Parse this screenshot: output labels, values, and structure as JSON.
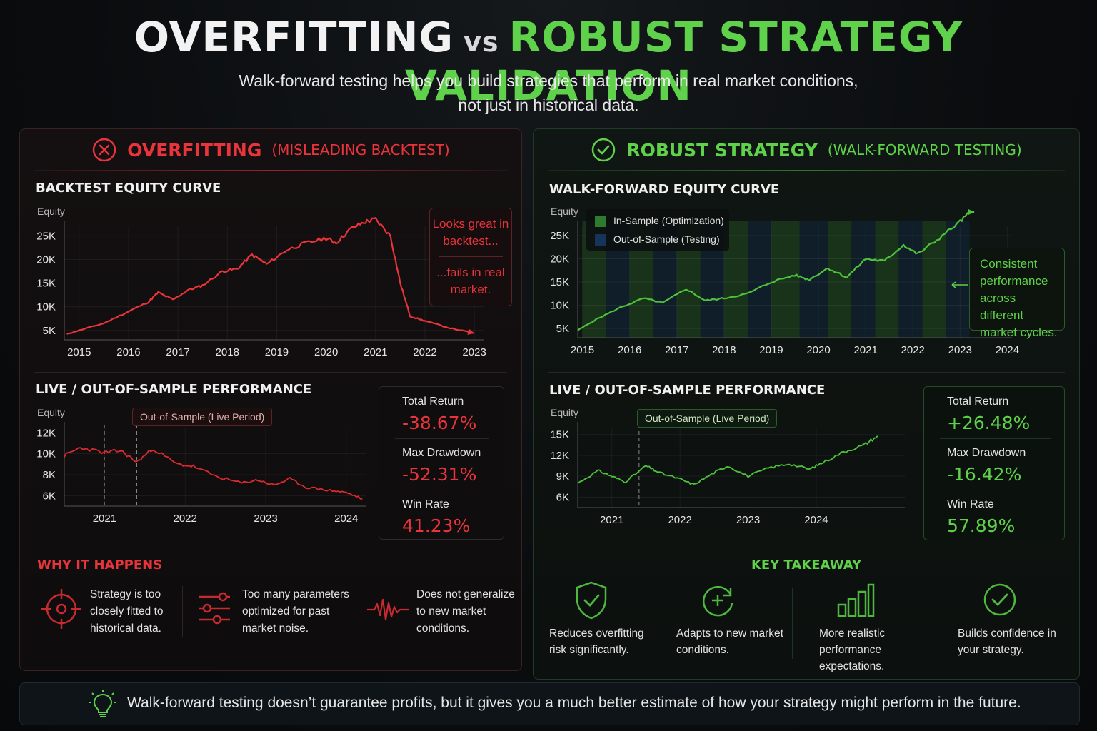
{
  "header": {
    "title_part1": "OVERFITTING",
    "title_vs": "vs",
    "title_part2": "ROBUST STRATEGY VALIDATION",
    "subtitle_line1": "Walk-forward testing helps you build strategies that perform in real market conditions,",
    "subtitle_line2": "not just in historical data."
  },
  "colors": {
    "red": "#e8343a",
    "green": "#5fd14a",
    "in_sample": "#1f4d22",
    "out_sample": "#0f2238"
  },
  "left": {
    "icon": "x-circle-icon",
    "title": "OVERFITTING",
    "title_sub": "(MISLEADING BACKTEST)",
    "backtest_title": "BACKTEST EQUITY CURVE",
    "callout_top": "Looks great in backtest...",
    "callout_bottom": "...fails in real market.",
    "live_title": "LIVE / OUT-OF-SAMPLE PERFORMANCE",
    "live_tag": "Out-of-Sample (Live Period)",
    "stats": [
      {
        "label": "Total Return",
        "value": "-38.67%"
      },
      {
        "label": "Max Drawdown",
        "value": "-52.31%"
      },
      {
        "label": "Win Rate",
        "value": "41.23%"
      }
    ],
    "why_title": "WHY IT HAPPENS",
    "why_items": [
      {
        "icon": "target-icon",
        "text": "Strategy is too closely fitted to historical data."
      },
      {
        "icon": "sliders-icon",
        "text": "Too many parameters optimized for past market noise."
      },
      {
        "icon": "waveform-icon",
        "text": "Does not generalize to new market conditions."
      }
    ]
  },
  "right": {
    "icon": "check-circle-icon",
    "title": "ROBUST STRATEGY",
    "title_sub": "(WALK-FORWARD TESTING)",
    "wf_title": "WALK-FORWARD EQUITY CURVE",
    "legend_in": "In-Sample (Optimization)",
    "legend_out": "Out-of-Sample (Testing)",
    "callout": "Consistent performance across different market cycles.",
    "live_title": "LIVE / OUT-OF-SAMPLE PERFORMANCE",
    "live_tag": "Out-of-Sample (Live Period)",
    "stats": [
      {
        "label": "Total Return",
        "value": "+26.48%"
      },
      {
        "label": "Max Drawdown",
        "value": "-16.42%"
      },
      {
        "label": "Win Rate",
        "value": "57.89%"
      }
    ],
    "take_title": "KEY TAKEAWAY",
    "take_items": [
      {
        "icon": "shield-check-icon",
        "text": "Reduces overfitting risk significantly."
      },
      {
        "icon": "refresh-plus-icon",
        "text": "Adapts to new market conditions."
      },
      {
        "icon": "bar-chart-icon",
        "text": "More realistic performance expectations."
      },
      {
        "icon": "check-circle-icon",
        "text": "Builds confidence in your strategy."
      }
    ]
  },
  "footer": {
    "icon": "lightbulb-icon",
    "text": "Walk-forward testing doesn’t guarantee profits, but it gives you a much better estimate of how your strategy might perform in the future."
  },
  "chart_data": [
    {
      "id": "backtest",
      "type": "line",
      "ylabel": "Equity",
      "x_ticks": [
        "2015",
        "2016",
        "2017",
        "2018",
        "2019",
        "2020",
        "2021",
        "2022",
        "2023"
      ],
      "y_ticks": [
        5000,
        10000,
        15000,
        20000,
        25000
      ],
      "y_tick_labels": [
        "5K",
        "10K",
        "15K",
        "20K",
        "25K"
      ],
      "xlim": [
        2014.7,
        2023.2
      ],
      "ylim": [
        3000,
        27000
      ],
      "series": [
        {
          "points": [
            [
              2014.75,
              4200
            ],
            [
              2015.0,
              5000
            ],
            [
              2015.5,
              6500
            ],
            [
              2016.0,
              9000
            ],
            [
              2016.4,
              11000
            ],
            [
              2016.6,
              13000
            ],
            [
              2016.9,
              11500
            ],
            [
              2017.2,
              13500
            ],
            [
              2017.5,
              14500
            ],
            [
              2017.9,
              17500
            ],
            [
              2018.2,
              18000
            ],
            [
              2018.5,
              21000
            ],
            [
              2018.8,
              19000
            ],
            [
              2019.2,
              22000
            ],
            [
              2019.6,
              23500
            ],
            [
              2020.0,
              24500
            ],
            [
              2020.2,
              23500
            ],
            [
              2020.5,
              26500
            ],
            [
              2020.8,
              28000
            ],
            [
              2021.0,
              28500
            ],
            [
              2021.3,
              25000
            ],
            [
              2021.5,
              15000
            ],
            [
              2021.7,
              8000
            ],
            [
              2022.0,
              7000
            ],
            [
              2022.5,
              5500
            ],
            [
              2023.0,
              4400
            ]
          ]
        }
      ]
    },
    {
      "id": "backtest_live",
      "type": "line",
      "ylabel": "Equity",
      "x_ticks": [
        "2021",
        "2022",
        "2023",
        "2024"
      ],
      "y_ticks": [
        6000,
        8000,
        10000,
        12000
      ],
      "y_tick_labels": [
        "6K",
        "8K",
        "10K",
        "12K"
      ],
      "xlim": [
        2020.5,
        2024.25
      ],
      "ylim": [
        5000,
        12500
      ],
      "live_start": 2021.4,
      "series": [
        {
          "points": [
            [
              2020.5,
              9800
            ],
            [
              2020.7,
              10600
            ],
            [
              2021.0,
              10100
            ],
            [
              2021.2,
              10300
            ],
            [
              2021.4,
              9200
            ],
            [
              2021.6,
              10500
            ],
            [
              2021.9,
              9000
            ],
            [
              2022.1,
              8800
            ],
            [
              2022.4,
              7800
            ],
            [
              2022.7,
              7200
            ],
            [
              2022.9,
              7500
            ],
            [
              2023.1,
              7000
            ],
            [
              2023.3,
              7600
            ],
            [
              2023.5,
              6800
            ],
            [
              2023.8,
              6500
            ],
            [
              2024.0,
              6300
            ],
            [
              2024.2,
              5700
            ]
          ]
        }
      ]
    },
    {
      "id": "walkforward",
      "type": "line",
      "ylabel": "Equity",
      "x_ticks": [
        "2015",
        "2016",
        "2017",
        "2018",
        "2019",
        "2020",
        "2021",
        "2022",
        "2023",
        "2024"
      ],
      "y_ticks": [
        5000,
        10000,
        15000,
        20000,
        25000
      ],
      "y_tick_labels": [
        "5K",
        "10K",
        "15K",
        "20K",
        "25K"
      ],
      "xlim": [
        2014.9,
        2024.1
      ],
      "ylim": [
        3000,
        27000
      ],
      "series": [
        {
          "points": [
            [
              2014.9,
              4600
            ],
            [
              2015.3,
              7000
            ],
            [
              2015.8,
              9500
            ],
            [
              2016.3,
              11500
            ],
            [
              2016.7,
              10500
            ],
            [
              2017.2,
              13500
            ],
            [
              2017.6,
              11000
            ],
            [
              2018.0,
              11500
            ],
            [
              2018.5,
              12500
            ],
            [
              2019.0,
              15000
            ],
            [
              2019.5,
              16500
            ],
            [
              2019.8,
              15500
            ],
            [
              2020.2,
              18000
            ],
            [
              2020.6,
              16000
            ],
            [
              2021.0,
              20000
            ],
            [
              2021.4,
              19500
            ],
            [
              2021.8,
              23000
            ],
            [
              2022.1,
              21000
            ],
            [
              2022.5,
              24000
            ],
            [
              2023.0,
              28000
            ],
            [
              2023.3,
              31000
            ]
          ]
        }
      ]
    },
    {
      "id": "walkforward_live",
      "type": "line",
      "ylabel": "Equity",
      "x_ticks": [
        "2021",
        "2022",
        "2023",
        "2024"
      ],
      "y_ticks": [
        6000,
        9000,
        12000,
        15000
      ],
      "y_tick_labels": [
        "6K",
        "9K",
        "12K",
        "15K"
      ],
      "xlim": [
        2020.5,
        2025.3
      ],
      "ylim": [
        4500,
        16000
      ],
      "live_start": 2021.4,
      "series": [
        {
          "points": [
            [
              2020.5,
              8000
            ],
            [
              2020.8,
              9800
            ],
            [
              2021.0,
              9000
            ],
            [
              2021.2,
              8200
            ],
            [
              2021.5,
              10500
            ],
            [
              2021.7,
              9500
            ],
            [
              2022.0,
              8600
            ],
            [
              2022.2,
              7800
            ],
            [
              2022.5,
              9500
            ],
            [
              2022.7,
              10500
            ],
            [
              2023.0,
              9000
            ],
            [
              2023.3,
              10200
            ],
            [
              2023.6,
              10800
            ],
            [
              2023.9,
              10000
            ],
            [
              2024.1,
              11000
            ],
            [
              2024.4,
              12500
            ],
            [
              2024.7,
              13500
            ],
            [
              2024.9,
              14800
            ]
          ]
        }
      ]
    }
  ]
}
